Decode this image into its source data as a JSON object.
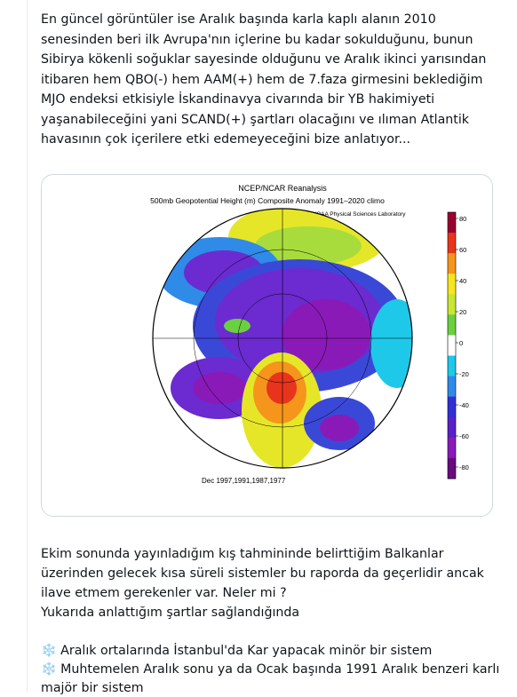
{
  "post": {
    "paragraph_1": [
      "En güncel görüntüler ise Aralık başında karla kaplı alanın 2010",
      "senesinden beri ilk Avrupa'nın içlerine bu kadar sokulduğunu, bunun",
      "Sibirya kökenli soğuklar sayesinde olduğunu ve Aralık ikinci yarısından",
      "itibaren hem QBO(-) hem AAM(+) hem de 7.faza girmesini beklediğim",
      "MJO endeksi etkisiyle İskandinavya civarında bir YB hakimiyeti",
      "yaşanabileceğini yani SCAND(+) şartları olacağını ve ılıman Atlantik",
      "havasının çok içerilere etki edemeyeceğini bize anlatıyor..."
    ],
    "image": {
      "title": "NCEP/NCAR Reanalysis",
      "subtitle": "500mb Geopotential Height (m) Composite Anomaly 1991–2020 climo",
      "source": "NOAA Physical Sciences Laboratory",
      "dates": "Dec 1997,1991,1987,1977",
      "colorbar_labels": [
        80,
        60,
        40,
        20,
        0,
        -20,
        -40,
        -60,
        -80
      ]
    },
    "paragraph_2": [
      "Ekim sonunda yayınladığım kış tahmininde belirttiğim Balkanlar",
      "üzerinden gelecek kısa süreli sistemler bu raporda da geçerlidir ancak",
      "ilave etmem gerekenler var. Neler mi ?",
      "Yukarıda anlattığım şartlar sağlandığında"
    ],
    "bullets": [
      [
        "❄️ Aralık ortalarında İstanbul'da Kar yapacak minör bir sistem"
      ],
      [
        "❄️ Muhtemelen Aralık sonu ya da Ocak başında 1991 Aralık benzeri karlı",
        "majör bir sistem"
      ]
    ]
  }
}
